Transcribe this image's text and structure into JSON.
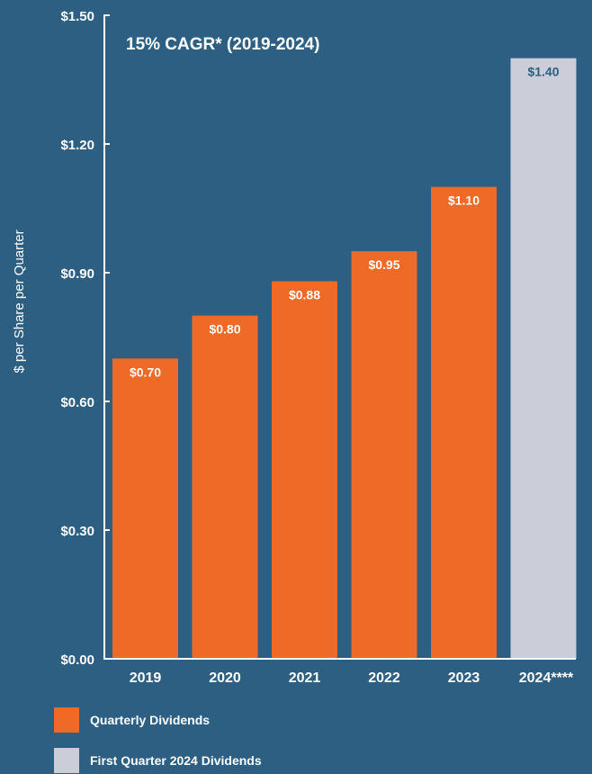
{
  "chart_data": {
    "type": "bar",
    "ylabel": "$ per Share per Quarter",
    "annotation": "15% CAGR* (2019-2024)",
    "categories": [
      "2019",
      "2020",
      "2021",
      "2022",
      "2023",
      "2024****"
    ],
    "values": [
      0.7,
      0.8,
      0.88,
      0.95,
      1.1,
      1.4
    ],
    "value_labels": [
      "$0.70",
      "$0.80",
      "$0.88",
      "$0.95",
      "$1.10",
      "$1.40"
    ],
    "series_index": [
      0,
      0,
      0,
      0,
      0,
      1
    ],
    "ylim": [
      0,
      1.5
    ],
    "yticks": [
      0,
      0.3,
      0.6,
      0.9,
      1.2,
      1.5
    ],
    "ytick_labels": [
      "$0.00",
      "$0.30",
      "$0.60",
      "$0.90",
      "$1.20",
      "$1.50"
    ],
    "grid": false,
    "legend_position": "bottom-left",
    "legend": [
      {
        "label": "Quarterly Dividends",
        "color": "#ee6a26"
      },
      {
        "label": "First Quarter 2024 Dividends",
        "color": "#cbced9"
      }
    ],
    "label_colors": [
      "#ffffff",
      "#2c5f82"
    ]
  }
}
